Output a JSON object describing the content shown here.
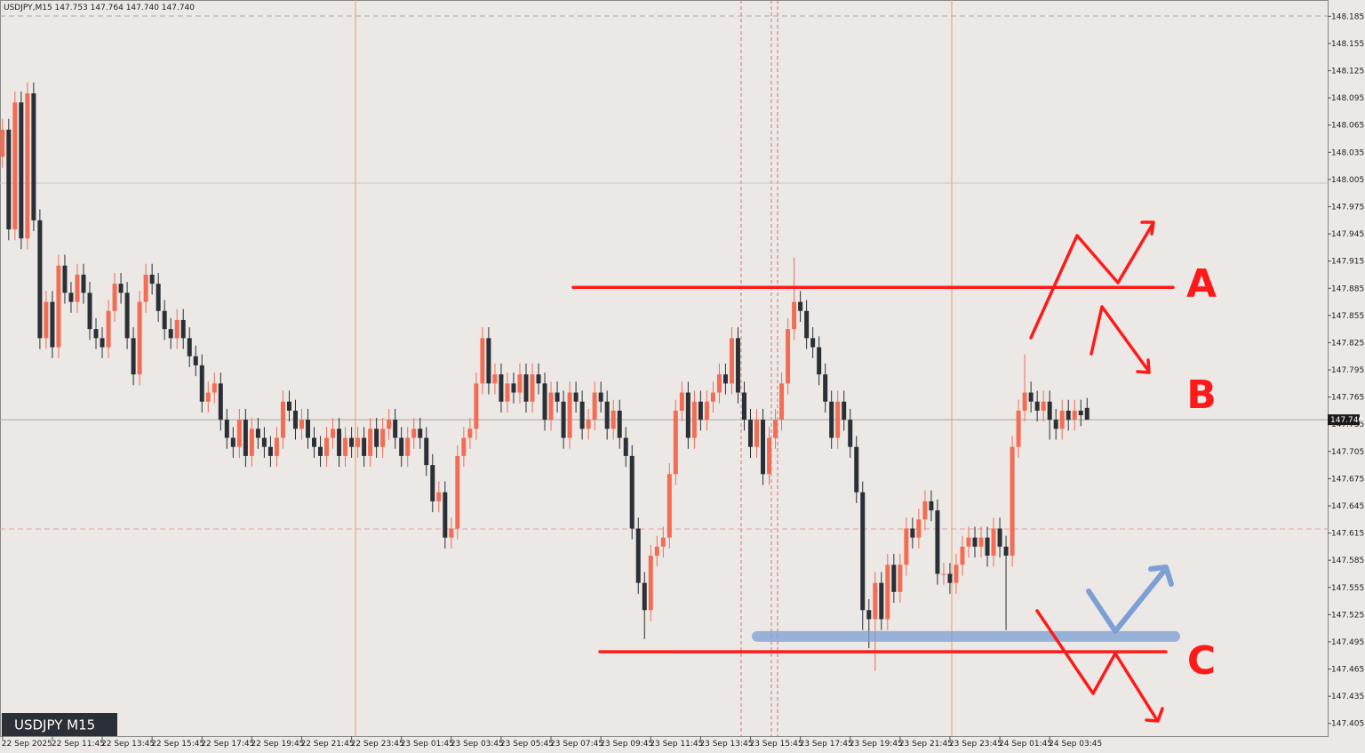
{
  "chart_data": {
    "type": "candlestick",
    "header": "USDJPY,M15  147.753 147.764 147.740 147.740",
    "symbol_box": "USDJPY M15",
    "up_color": "#f36d55",
    "down_color": "#2b2f36",
    "grid": false,
    "xlim": [
      -0.4,
      212.6
    ],
    "xticks": [
      {
        "value": 0,
        "label": "22 Sep 2025"
      },
      {
        "value": 8,
        "label": "22 Sep 11:45"
      },
      {
        "value": 16,
        "label": "22 Sep 13:45"
      },
      {
        "value": 24,
        "label": "22 Sep 15:45"
      },
      {
        "value": 32,
        "label": "22 Sep 17:45"
      },
      {
        "value": 40,
        "label": "22 Sep 19:45"
      },
      {
        "value": 48,
        "label": "22 Sep 21:45"
      },
      {
        "value": 56,
        "label": "22 Sep 23:45"
      },
      {
        "value": 64,
        "label": "23 Sep 01:45"
      },
      {
        "value": 72,
        "label": "23 Sep 03:45"
      },
      {
        "value": 80,
        "label": "23 Sep 05:45"
      },
      {
        "value": 88,
        "label": "23 Sep 07:45"
      },
      {
        "value": 96,
        "label": "23 Sep 09:45"
      },
      {
        "value": 104,
        "label": "23 Sep 11:45"
      },
      {
        "value": 112,
        "label": "23 Sep 13:45"
      },
      {
        "value": 120,
        "label": "23 Sep 15:45"
      },
      {
        "value": 128,
        "label": "23 Sep 17:45"
      },
      {
        "value": 136,
        "label": "23 Sep 19:45"
      },
      {
        "value": 144,
        "label": "23 Sep 21:45"
      },
      {
        "value": 152,
        "label": "23 Sep 23:45"
      },
      {
        "value": 160,
        "label": "24 Sep 01:45"
      },
      {
        "value": 168,
        "label": "24 Sep 03:45"
      }
    ],
    "ylim": [
      147.391,
      148.203
    ],
    "yticks": [
      148.185,
      148.155,
      148.125,
      148.095,
      148.065,
      148.035,
      148.005,
      147.975,
      147.945,
      147.915,
      147.885,
      147.855,
      147.825,
      147.795,
      147.765,
      147.735,
      147.705,
      147.675,
      147.645,
      147.615,
      147.585,
      147.555,
      147.525,
      147.495,
      147.465,
      147.435,
      147.405
    ],
    "current_price": {
      "value": 147.74,
      "label": "147.740"
    },
    "levels": [
      {
        "value": 147.886,
        "color": "#ff1a1a"
      },
      {
        "value": 147.484,
        "color": "#ff1a1a"
      },
      {
        "value": 147.501,
        "color": "#7c9fd6"
      }
    ],
    "annotations": [
      "A",
      "B",
      "C"
    ],
    "candles": [
      [
        148.03,
        148.072,
        148.018,
        148.06
      ],
      [
        148.06,
        148.072,
        147.938,
        147.95
      ],
      [
        147.95,
        148.102,
        147.938,
        148.09
      ],
      [
        148.09,
        148.102,
        147.928,
        147.94
      ],
      [
        147.94,
        148.112,
        147.928,
        148.1
      ],
      [
        148.1,
        148.112,
        147.948,
        147.96
      ],
      [
        147.96,
        147.972,
        147.818,
        147.83
      ],
      [
        147.83,
        147.882,
        147.818,
        147.87
      ],
      [
        147.87,
        147.882,
        147.808,
        147.82
      ],
      [
        147.82,
        147.922,
        147.808,
        147.91
      ],
      [
        147.91,
        147.922,
        147.868,
        147.88
      ],
      [
        147.88,
        147.892,
        147.858,
        147.87
      ],
      [
        147.87,
        147.912,
        147.858,
        147.9
      ],
      [
        147.9,
        147.912,
        147.868,
        147.88
      ],
      [
        147.88,
        147.892,
        147.828,
        147.84
      ],
      [
        147.84,
        147.852,
        147.818,
        147.83
      ],
      [
        147.83,
        147.842,
        147.808,
        147.82
      ],
      [
        147.82,
        147.872,
        147.808,
        147.86
      ],
      [
        147.86,
        147.902,
        147.848,
        147.89
      ],
      [
        147.89,
        147.902,
        147.868,
        147.88
      ],
      [
        147.88,
        147.892,
        147.818,
        147.83
      ],
      [
        147.83,
        147.842,
        147.778,
        147.79
      ],
      [
        147.79,
        147.882,
        147.778,
        147.87
      ],
      [
        147.87,
        147.912,
        147.858,
        147.9
      ],
      [
        147.9,
        147.912,
        147.878,
        147.89
      ],
      [
        147.89,
        147.902,
        147.848,
        147.86
      ],
      [
        147.86,
        147.872,
        147.828,
        147.84
      ],
      [
        147.84,
        147.852,
        147.818,
        147.83
      ],
      [
        147.83,
        147.862,
        147.818,
        147.85
      ],
      [
        147.85,
        147.862,
        147.818,
        147.83
      ],
      [
        147.83,
        147.842,
        147.798,
        147.81
      ],
      [
        147.81,
        147.822,
        147.788,
        147.8
      ],
      [
        147.8,
        147.812,
        147.748,
        147.76
      ],
      [
        147.76,
        147.782,
        147.748,
        147.77
      ],
      [
        147.77,
        147.792,
        147.758,
        147.78
      ],
      [
        147.78,
        147.792,
        147.728,
        147.74
      ],
      [
        147.74,
        147.752,
        147.708,
        147.72
      ],
      [
        147.72,
        147.732,
        147.698,
        147.71
      ],
      [
        147.71,
        147.752,
        147.698,
        147.74
      ],
      [
        147.74,
        147.752,
        147.688,
        147.7
      ],
      [
        147.7,
        147.742,
        147.688,
        147.73
      ],
      [
        147.73,
        147.742,
        147.708,
        147.72
      ],
      [
        147.72,
        147.732,
        147.698,
        147.71
      ],
      [
        147.71,
        147.722,
        147.688,
        147.7
      ],
      [
        147.7,
        147.732,
        147.688,
        147.72
      ],
      [
        147.72,
        147.772,
        147.708,
        147.76
      ],
      [
        147.76,
        147.772,
        147.738,
        147.75
      ],
      [
        147.75,
        147.762,
        147.718,
        147.73
      ],
      [
        147.73,
        147.752,
        147.718,
        147.74
      ],
      [
        147.74,
        147.752,
        147.708,
        147.72
      ],
      [
        147.72,
        147.732,
        147.698,
        147.71
      ],
      [
        147.71,
        147.722,
        147.688,
        147.7
      ],
      [
        147.7,
        147.732,
        147.688,
        147.72
      ],
      [
        147.72,
        147.742,
        147.708,
        147.73
      ],
      [
        147.73,
        147.742,
        147.688,
        147.7
      ],
      [
        147.7,
        147.732,
        147.688,
        147.72
      ],
      [
        147.72,
        147.732,
        147.698,
        147.71
      ],
      [
        147.71,
        147.732,
        147.698,
        147.72
      ],
      [
        147.72,
        147.732,
        147.688,
        147.7
      ],
      [
        147.7,
        147.742,
        147.688,
        147.73
      ],
      [
        147.73,
        147.742,
        147.698,
        147.71
      ],
      [
        147.71,
        147.742,
        147.698,
        147.73
      ],
      [
        147.73,
        147.752,
        147.718,
        147.74
      ],
      [
        147.74,
        147.752,
        147.708,
        147.72
      ],
      [
        147.72,
        147.732,
        147.688,
        147.7
      ],
      [
        147.7,
        147.732,
        147.688,
        147.72
      ],
      [
        147.72,
        147.742,
        147.708,
        147.73
      ],
      [
        147.73,
        147.742,
        147.708,
        147.72
      ],
      [
        147.72,
        147.732,
        147.678,
        147.69
      ],
      [
        147.69,
        147.702,
        147.638,
        147.65
      ],
      [
        147.65,
        147.672,
        147.638,
        147.66
      ],
      [
        147.66,
        147.672,
        147.598,
        147.61
      ],
      [
        147.61,
        147.632,
        147.598,
        147.62
      ],
      [
        147.62,
        147.712,
        147.608,
        147.7
      ],
      [
        147.7,
        147.732,
        147.688,
        147.72
      ],
      [
        147.72,
        147.742,
        147.708,
        147.73
      ],
      [
        147.73,
        147.792,
        147.718,
        147.78
      ],
      [
        147.78,
        147.842,
        147.768,
        147.83
      ],
      [
        147.83,
        147.842,
        147.768,
        147.78
      ],
      [
        147.78,
        147.802,
        147.768,
        147.79
      ],
      [
        147.79,
        147.802,
        147.748,
        147.76
      ],
      [
        147.76,
        147.792,
        147.748,
        147.78
      ],
      [
        147.78,
        147.792,
        147.758,
        147.77
      ],
      [
        147.77,
        147.802,
        147.758,
        147.79
      ],
      [
        147.79,
        147.802,
        147.748,
        147.76
      ],
      [
        147.76,
        147.802,
        147.748,
        147.79
      ],
      [
        147.79,
        147.802,
        147.768,
        147.78
      ],
      [
        147.78,
        147.792,
        147.728,
        147.74
      ],
      [
        147.74,
        147.782,
        147.728,
        147.77
      ],
      [
        147.77,
        147.782,
        147.748,
        147.76
      ],
      [
        147.76,
        147.772,
        147.708,
        147.72
      ],
      [
        147.72,
        147.782,
        147.708,
        147.77
      ],
      [
        147.77,
        147.782,
        147.748,
        147.76
      ],
      [
        147.76,
        147.772,
        147.718,
        147.73
      ],
      [
        147.73,
        147.752,
        147.718,
        147.74
      ],
      [
        147.74,
        147.782,
        147.728,
        147.77
      ],
      [
        147.77,
        147.782,
        147.748,
        147.76
      ],
      [
        147.76,
        147.772,
        147.718,
        147.73
      ],
      [
        147.73,
        147.762,
        147.718,
        147.75
      ],
      [
        147.75,
        147.762,
        147.708,
        147.72
      ],
      [
        147.72,
        147.732,
        147.688,
        147.7
      ],
      [
        147.7,
        147.712,
        147.608,
        147.62
      ],
      [
        147.62,
        147.632,
        147.548,
        147.56
      ],
      [
        147.56,
        147.572,
        147.498,
        147.53
      ],
      [
        147.53,
        147.602,
        147.518,
        147.59
      ],
      [
        147.59,
        147.612,
        147.578,
        147.6
      ],
      [
        147.6,
        147.622,
        147.588,
        147.61
      ],
      [
        147.61,
        147.692,
        147.598,
        147.68
      ],
      [
        147.68,
        147.762,
        147.668,
        147.75
      ],
      [
        147.75,
        147.782,
        147.738,
        147.77
      ],
      [
        147.77,
        147.782,
        147.708,
        147.72
      ],
      [
        147.72,
        147.772,
        147.708,
        147.76
      ],
      [
        147.76,
        147.772,
        147.728,
        147.74
      ],
      [
        147.74,
        147.772,
        147.728,
        147.76
      ],
      [
        147.76,
        147.782,
        147.748,
        147.77
      ],
      [
        147.77,
        147.802,
        147.758,
        147.79
      ],
      [
        147.79,
        147.802,
        147.768,
        147.78
      ],
      [
        147.78,
        147.842,
        147.768,
        147.83
      ],
      [
        147.83,
        147.842,
        147.758,
        147.77
      ],
      [
        147.77,
        147.782,
        147.728,
        147.74
      ],
      [
        147.74,
        147.752,
        147.698,
        147.71
      ],
      [
        147.71,
        147.752,
        147.698,
        147.74
      ],
      [
        147.74,
        147.752,
        147.668,
        147.68
      ],
      [
        147.68,
        147.732,
        147.668,
        147.72
      ],
      [
        147.72,
        147.752,
        147.708,
        147.74
      ],
      [
        147.74,
        147.792,
        147.728,
        147.78
      ],
      [
        147.78,
        147.852,
        147.768,
        147.84
      ],
      [
        147.84,
        147.919,
        147.828,
        147.87
      ],
      [
        147.87,
        147.882,
        147.848,
        147.86
      ],
      [
        147.86,
        147.872,
        147.818,
        147.83
      ],
      [
        147.83,
        147.842,
        147.808,
        147.82
      ],
      [
        147.82,
        147.832,
        147.778,
        147.79
      ],
      [
        147.79,
        147.802,
        147.748,
        147.76
      ],
      [
        147.76,
        147.772,
        147.708,
        147.72
      ],
      [
        147.72,
        147.772,
        147.708,
        147.76
      ],
      [
        147.76,
        147.772,
        147.728,
        147.74
      ],
      [
        147.74,
        147.752,
        147.698,
        147.71
      ],
      [
        147.71,
        147.722,
        147.648,
        147.66
      ],
      [
        147.66,
        147.672,
        147.508,
        147.53
      ],
      [
        147.53,
        147.542,
        147.488,
        147.52
      ],
      [
        147.52,
        147.572,
        147.463,
        147.56
      ],
      [
        147.56,
        147.572,
        147.508,
        147.52
      ],
      [
        147.52,
        147.592,
        147.508,
        147.58
      ],
      [
        147.58,
        147.592,
        147.538,
        147.55
      ],
      [
        147.55,
        147.592,
        147.538,
        147.58
      ],
      [
        147.58,
        147.632,
        147.568,
        147.62
      ],
      [
        147.62,
        147.632,
        147.598,
        147.61
      ],
      [
        147.61,
        147.642,
        147.598,
        147.63
      ],
      [
        147.63,
        147.662,
        147.618,
        147.65
      ],
      [
        147.65,
        147.662,
        147.628,
        147.64
      ],
      [
        147.64,
        147.652,
        147.558,
        147.57
      ],
      [
        147.57,
        147.582,
        147.558,
        147.57
      ],
      [
        147.57,
        147.582,
        147.548,
        147.56
      ],
      [
        147.56,
        147.592,
        147.548,
        147.58
      ],
      [
        147.58,
        147.612,
        147.568,
        147.6
      ],
      [
        147.6,
        147.622,
        147.588,
        147.61
      ],
      [
        147.61,
        147.622,
        147.588,
        147.6
      ],
      [
        147.6,
        147.622,
        147.588,
        147.61
      ],
      [
        147.61,
        147.622,
        147.578,
        147.59
      ],
      [
        147.59,
        147.632,
        147.578,
        147.62
      ],
      [
        147.62,
        147.632,
        147.588,
        147.6
      ],
      [
        147.6,
        147.612,
        147.508,
        147.59
      ],
      [
        147.59,
        147.722,
        147.578,
        147.71
      ],
      [
        147.71,
        147.762,
        147.698,
        147.75
      ],
      [
        147.75,
        147.812,
        147.738,
        147.77
      ],
      [
        147.77,
        147.782,
        147.748,
        147.76
      ],
      [
        147.76,
        147.772,
        147.738,
        147.75
      ],
      [
        147.75,
        147.772,
        147.738,
        147.76
      ],
      [
        147.76,
        147.772,
        147.718,
        147.74
      ],
      [
        147.74,
        147.752,
        147.718,
        147.73
      ],
      [
        147.73,
        147.762,
        147.718,
        147.75
      ],
      [
        147.75,
        147.762,
        147.728,
        147.74
      ],
      [
        147.74,
        147.762,
        147.728,
        147.75
      ],
      [
        147.75,
        147.762,
        147.733,
        147.745
      ],
      [
        147.753,
        147.764,
        147.74,
        147.74
      ]
    ]
  }
}
